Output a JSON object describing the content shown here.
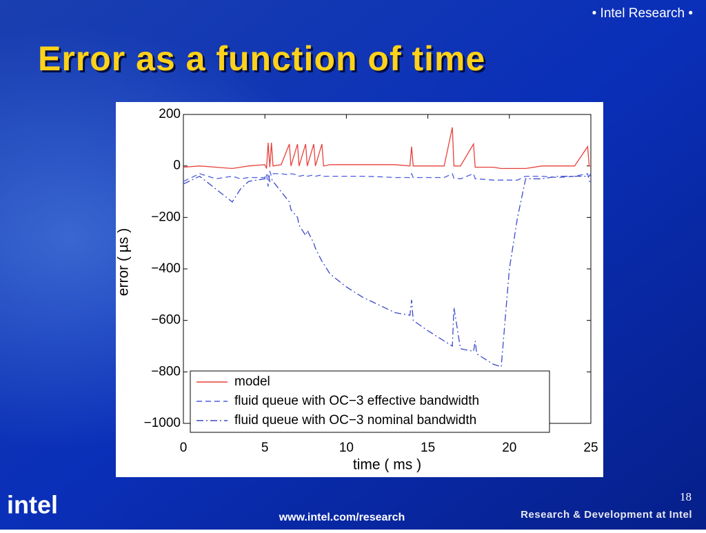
{
  "header": {
    "tag": "• Intel Research •",
    "title": "Error as a function of time"
  },
  "footer": {
    "logo": "intel",
    "page_number": "18",
    "url": "www.intel.com/research",
    "tagline": "Research & Development at Intel"
  },
  "chart_data": {
    "type": "line",
    "x_label": "time ( ms )",
    "y_label": "error ( µs )",
    "xlim": [
      0,
      25
    ],
    "ylim": [
      -1000,
      200
    ],
    "xticks": [
      0,
      5,
      10,
      15,
      20,
      25
    ],
    "yticks": [
      {
        "value": -1000,
        "label": "−1000"
      },
      {
        "value": -800,
        "label": "−800"
      },
      {
        "value": -600,
        "label": "−600"
      },
      {
        "value": -400,
        "label": "−400"
      },
      {
        "value": -200,
        "label": "−200"
      },
      0,
      200
    ],
    "grid": false,
    "legend": "lower left",
    "x": [
      0,
      1,
      2,
      3,
      3.5,
      4,
      5,
      5.1,
      5.2,
      5.3,
      5.4,
      5.5,
      6,
      6.5,
      6.6,
      7,
      7.1,
      7.5,
      7.6,
      8,
      8.1,
      8.5,
      8.6,
      9,
      10,
      11,
      12,
      13,
      13.9,
      14,
      14.1,
      15,
      16,
      16.5,
      16.6,
      17,
      17.8,
      17.9,
      18,
      19,
      19.5,
      20,
      20.5,
      21,
      22,
      23,
      24,
      24.8,
      24.9,
      25
    ],
    "series": [
      {
        "name": "model",
        "color": "#e8403a",
        "style": "solid",
        "values": [
          -5,
          0,
          -5,
          -10,
          -5,
          0,
          5,
          -10,
          90,
          -5,
          90,
          0,
          5,
          85,
          0,
          85,
          0,
          85,
          0,
          85,
          0,
          85,
          0,
          5,
          5,
          5,
          5,
          5,
          0,
          75,
          0,
          0,
          0,
          150,
          0,
          0,
          85,
          -5,
          -5,
          -5,
          -10,
          -10,
          -10,
          -10,
          0,
          0,
          0,
          75,
          0,
          0
        ]
      },
      {
        "name": "fluid queue with OC−3 effective bandwidth",
        "color": "#4a5ae0",
        "style": "dashed",
        "values": [
          -60,
          -30,
          -50,
          -40,
          -50,
          -45,
          -45,
          -30,
          -80,
          -20,
          -40,
          -30,
          -30,
          -35,
          -30,
          -35,
          -40,
          -35,
          -40,
          -35,
          -40,
          -35,
          -40,
          -40,
          -40,
          -40,
          -42,
          -45,
          -45,
          -30,
          -45,
          -45,
          -45,
          -30,
          -48,
          -50,
          -30,
          -50,
          -50,
          -55,
          -55,
          -55,
          -55,
          -40,
          -40,
          -45,
          -40,
          -30,
          -60,
          -60
        ]
      },
      {
        "name": "fluid queue with OC−3 nominal bandwidth",
        "color": "#3a48c8",
        "style": "dashdot",
        "values": [
          -70,
          -40,
          -90,
          -140,
          -90,
          -60,
          -50,
          -40,
          -30,
          -60,
          -50,
          -60,
          -100,
          -140,
          -170,
          -200,
          -230,
          -270,
          -250,
          -300,
          -320,
          -370,
          -380,
          -420,
          -470,
          -510,
          -540,
          -570,
          -580,
          -520,
          -600,
          -640,
          -680,
          -700,
          -550,
          -710,
          -720,
          -680,
          -730,
          -770,
          -780,
          -400,
          -200,
          -50,
          -50,
          -40,
          -40,
          -40,
          -40,
          -30
        ]
      }
    ]
  }
}
